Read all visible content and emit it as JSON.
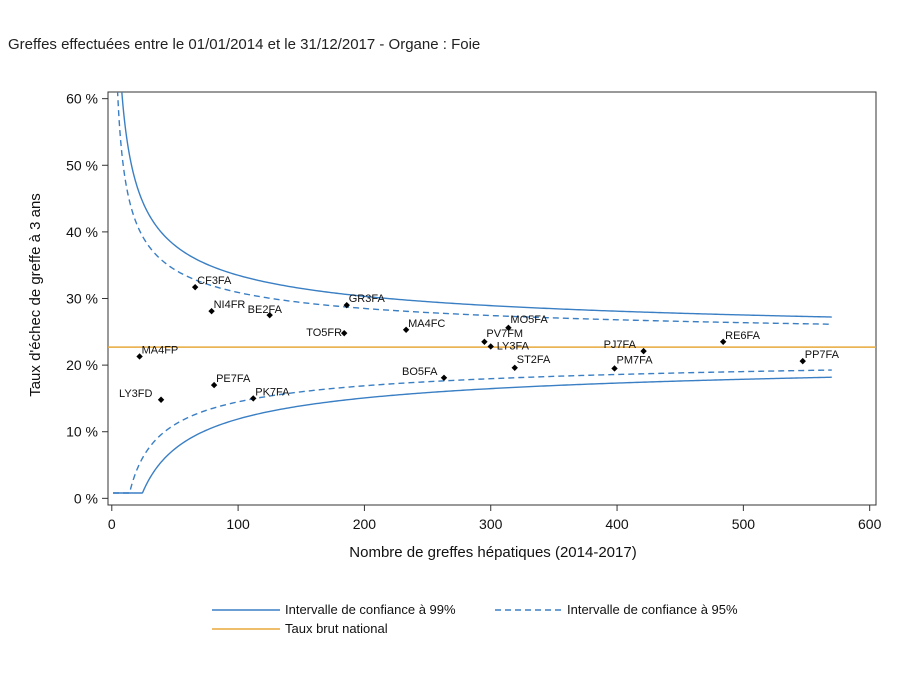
{
  "header": {
    "title": "Greffes effectuées entre le 01/01/2014 et le 31/12/2017 - Organe : Foie"
  },
  "chart_data": {
    "type": "scatter",
    "title": "",
    "xlabel": "Nombre de greffes hépatiques (2014-2017)",
    "ylabel": "Taux d'échec de greffe à 3 ans",
    "xlim": [
      -3,
      605
    ],
    "ylim": [
      -1,
      61
    ],
    "x_ticks": [
      0,
      100,
      200,
      300,
      400,
      500,
      600
    ],
    "x_tick_labels": [
      "0",
      "100",
      "200",
      "300",
      "400",
      "500",
      "600"
    ],
    "y_ticks": [
      0,
      10,
      20,
      30,
      40,
      50,
      60
    ],
    "y_tick_labels": [
      "0 %",
      "10 %",
      "20 %",
      "30 %",
      "40 %",
      "50 %",
      "60 %"
    ],
    "national_rate": 22.7,
    "colors": {
      "ci": "#3a7fc4",
      "national": "#e8a93a",
      "points": "#000000"
    },
    "points": [
      {
        "label": "CF3FA",
        "x": 66,
        "y": 31.7
      },
      {
        "label": "NI4FR",
        "x": 79,
        "y": 28.1
      },
      {
        "label": "BE2FA",
        "x": 125,
        "y": 27.5
      },
      {
        "label": "GR3FA",
        "x": 186,
        "y": 29.0
      },
      {
        "label": "TO5FR",
        "x": 184,
        "y": 24.8
      },
      {
        "label": "MA4FC",
        "x": 233,
        "y": 25.3
      },
      {
        "label": "MO5FA",
        "x": 314,
        "y": 25.6
      },
      {
        "label": "PV7FM",
        "x": 295,
        "y": 23.5
      },
      {
        "label": "LY3FA",
        "x": 300,
        "y": 22.8
      },
      {
        "label": "PJ7FA",
        "x": 421,
        "y": 22.1
      },
      {
        "label": "RE6FA",
        "x": 484,
        "y": 23.5
      },
      {
        "label": "PP7FA",
        "x": 547,
        "y": 20.6
      },
      {
        "label": "MA4FP",
        "x": 22,
        "y": 21.3
      },
      {
        "label": "ST2FA",
        "x": 319,
        "y": 19.6
      },
      {
        "label": "PM7FA",
        "x": 398,
        "y": 19.5
      },
      {
        "label": "BO5FA",
        "x": 263,
        "y": 18.1
      },
      {
        "label": "PE7FA",
        "x": 81,
        "y": 17.0
      },
      {
        "label": "LY3FD",
        "x": 39,
        "y": 14.8
      },
      {
        "label": "PK7FA",
        "x": 112,
        "y": 15.0
      }
    ],
    "series": [
      {
        "name": "Intervalle de confiance à 99%",
        "style": "solid"
      },
      {
        "name": "Intervalle de confiance à 95%",
        "style": "dashed"
      },
      {
        "name": "Taux brut national",
        "style": "solid"
      }
    ],
    "legend_position": "bottom"
  }
}
